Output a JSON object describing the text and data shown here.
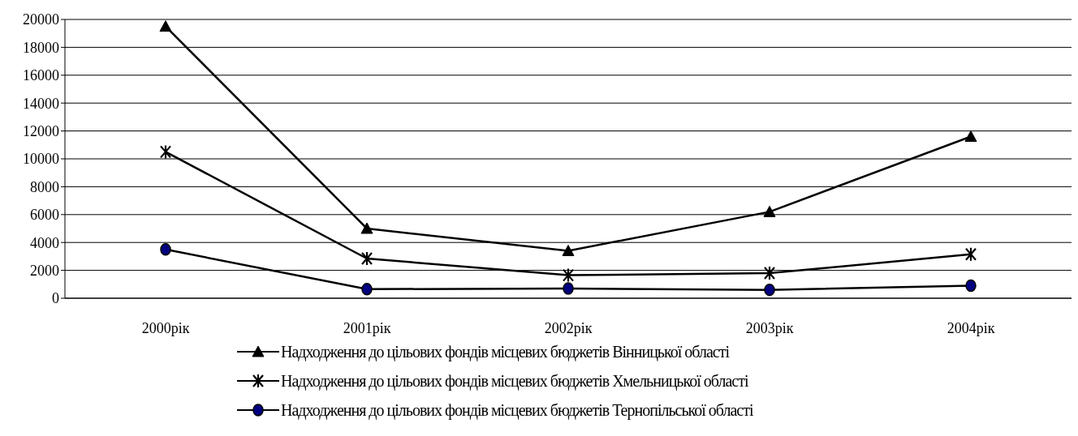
{
  "chart_data": {
    "type": "line",
    "categories": [
      "2000рік",
      "2001рік",
      "2002рік",
      "2003рік",
      "2004рік"
    ],
    "series": [
      {
        "name": "Надходження до цільових фондів місцевих бюджетів Вінницької області",
        "color": "#000000",
        "marker": "triangle",
        "values": [
          19500,
          5000,
          3400,
          6200,
          11600
        ]
      },
      {
        "name": "Надходження до цільових фондів місцевих бюджетів Хмельницької області",
        "color": "#000000",
        "marker": "cross",
        "values": [
          10500,
          2850,
          1650,
          1800,
          3150
        ]
      },
      {
        "name": "Надходження до цільових фондів місцевих бюджетів Тернопільської області",
        "color": "#000000",
        "marker": "circle",
        "values": [
          3500,
          650,
          700,
          600,
          900
        ]
      }
    ],
    "ylim": [
      0,
      20000
    ],
    "yticks": [
      0,
      2000,
      4000,
      6000,
      8000,
      10000,
      12000,
      14000,
      16000,
      18000,
      20000
    ],
    "grid": "y",
    "legend": "bottom"
  }
}
